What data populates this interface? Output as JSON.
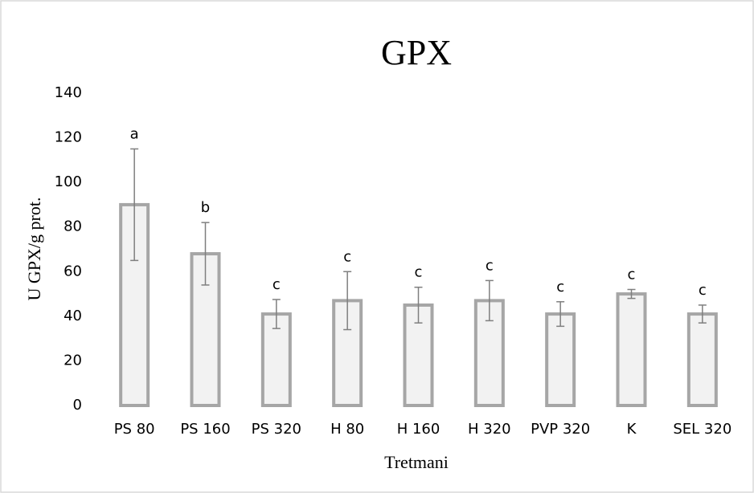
{
  "chart_data": {
    "type": "bar",
    "title": "GPX",
    "x_label": "Tretmani",
    "y_label": "U GPX/g prot.",
    "categories": [
      "PS 80",
      "PS 160",
      "PS 320",
      "H 80",
      "H 160",
      "H 320",
      "PVP 320",
      "K",
      "SEL 320"
    ],
    "values": [
      90,
      68,
      41,
      47,
      45,
      47,
      41,
      50,
      41
    ],
    "errors": [
      25,
      14,
      6.5,
      13,
      8,
      9,
      5.5,
      2,
      4
    ],
    "annotations": [
      "a",
      "b",
      "c",
      "c",
      "c",
      "c",
      "c",
      "c",
      "c"
    ],
    "color": "#f2f2f2",
    "edge_color": "#a6a6a6",
    "error_color": "#7f7f7f",
    "ylim": [
      0,
      140
    ],
    "yticks": [
      0,
      20,
      40,
      60,
      80,
      100,
      120,
      140
    ],
    "grid": false
  }
}
